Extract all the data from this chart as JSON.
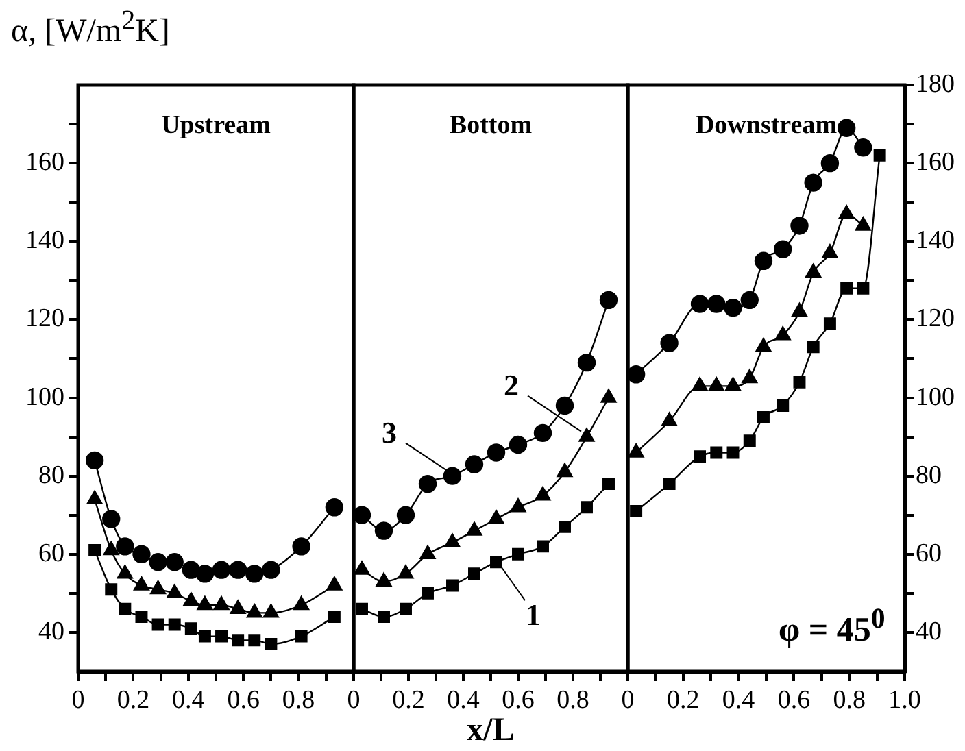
{
  "chart_data": [
    {
      "type": "line",
      "title": "Upstream",
      "ylabel": "α, [W/m$^{2}$K]",
      "line_style": "solid",
      "xlim": [
        0,
        1
      ],
      "xticks": [
        0,
        {
          "value": 0.1,
          "label": null
        },
        0.2,
        {
          "value": 0.3,
          "label": null
        },
        0.4,
        {
          "value": 0.5,
          "label": null
        },
        0.6,
        {
          "value": 0.7,
          "label": null
        },
        0.8,
        {
          "value": 0.9,
          "label": null
        },
        {
          "value": 1,
          "label": null
        }
      ],
      "ylim": [
        30,
        180
      ],
      "yticks": [
        40,
        {
          "value": 50,
          "label": null
        },
        60,
        {
          "value": 70,
          "label": null
        },
        80,
        {
          "value": 90,
          "label": null
        },
        100,
        {
          "value": 110,
          "label": null
        },
        120,
        {
          "value": 130,
          "label": null
        },
        140,
        {
          "value": 150,
          "label": null
        },
        160,
        {
          "value": 170,
          "label": null
        }
      ],
      "series": [
        {
          "color": "#000000",
          "marker": "square",
          "x": [
            0.06,
            0.12,
            0.17,
            0.23,
            0.29,
            0.35,
            0.41,
            0.46,
            0.52,
            0.58,
            0.64,
            0.7,
            0.81,
            0.93
          ],
          "values": [
            61,
            51,
            46,
            44,
            42,
            42,
            41,
            39,
            39,
            38,
            38,
            37,
            39,
            44
          ]
        },
        {
          "color": "#000000",
          "marker": "triangle",
          "x": [
            0.06,
            0.12,
            0.17,
            0.23,
            0.29,
            0.35,
            0.41,
            0.46,
            0.52,
            0.58,
            0.64,
            0.7,
            0.81,
            0.93
          ],
          "values": [
            74,
            61,
            55,
            52,
            51,
            50,
            48,
            47,
            47,
            46,
            45,
            45,
            47,
            52
          ]
        },
        {
          "color": "#000000",
          "marker": "circle",
          "x": [
            0.06,
            0.12,
            0.17,
            0.23,
            0.29,
            0.35,
            0.41,
            0.46,
            0.52,
            0.58,
            0.64,
            0.7,
            0.81,
            0.93
          ],
          "values": [
            84,
            69,
            62,
            60,
            58,
            58,
            56,
            55,
            56,
            56,
            55,
            56,
            62,
            72
          ]
        }
      ]
    },
    {
      "type": "line",
      "title": "Bottom",
      "xlabel": "x/L",
      "line_style": "solid",
      "tick_labels": "x",
      "xlim": [
        0,
        1
      ],
      "xticks": [
        0,
        {
          "value": 0.1,
          "label": null
        },
        0.2,
        {
          "value": 0.3,
          "label": null
        },
        0.4,
        {
          "value": 0.5,
          "label": null
        },
        0.6,
        {
          "value": 0.7,
          "label": null
        },
        0.8,
        {
          "value": 0.9,
          "label": null
        },
        {
          "value": 1,
          "label": null
        }
      ],
      "ylim": [
        30,
        180
      ],
      "series": [
        {
          "name": "1",
          "color": "#000000",
          "marker": "square",
          "x": [
            0.03,
            0.11,
            0.19,
            0.27,
            0.36,
            0.44,
            0.52,
            0.6,
            0.69,
            0.77,
            0.85,
            0.93
          ],
          "values": [
            46,
            44,
            46,
            50,
            52,
            55,
            58,
            60,
            62,
            67,
            72,
            78
          ]
        },
        {
          "name": "2",
          "color": "#000000",
          "marker": "triangle",
          "x": [
            0.03,
            0.11,
            0.19,
            0.27,
            0.36,
            0.44,
            0.52,
            0.6,
            0.69,
            0.77,
            0.85,
            0.93
          ],
          "values": [
            56,
            53,
            55,
            60,
            63,
            66,
            69,
            72,
            75,
            81,
            90,
            100
          ]
        },
        {
          "name": "3",
          "color": "#000000",
          "marker": "circle",
          "x": [
            0.03,
            0.11,
            0.19,
            0.27,
            0.36,
            0.44,
            0.52,
            0.6,
            0.69,
            0.77,
            0.85,
            0.93
          ],
          "values": [
            70,
            66,
            70,
            78,
            80,
            83,
            86,
            88,
            91,
            98,
            109,
            125
          ]
        }
      ]
    },
    {
      "type": "line",
      "title": "Downstream",
      "line_style": "solid",
      "annotations": [
        "φ = 45$^{0}$"
      ],
      "xlim": [
        0,
        1
      ],
      "xticks": [
        0,
        {
          "value": 0.1,
          "label": null
        },
        0.2,
        {
          "value": 0.3,
          "label": null
        },
        0.4,
        {
          "value": 0.5,
          "label": null
        },
        0.6,
        {
          "value": 0.7,
          "label": null
        },
        0.8,
        {
          "value": 0.9,
          "label": null
        },
        {
          "value": 1,
          "label": "1.0"
        }
      ],
      "y2lim": [
        30,
        180
      ],
      "y2ticks": [
        40,
        {
          "value": 50,
          "label": null
        },
        60,
        {
          "value": 70,
          "label": null
        },
        80,
        {
          "value": 90,
          "label": null
        },
        100,
        {
          "value": 110,
          "label": null
        },
        120,
        {
          "value": 130,
          "label": null
        },
        140,
        {
          "value": 150,
          "label": null
        },
        160,
        {
          "value": 170,
          "label": null
        },
        180
      ],
      "series": [
        {
          "axis": "y2",
          "color": "#000000",
          "marker": "square",
          "x": [
            0.03,
            0.15,
            0.26,
            0.32,
            0.38,
            0.44,
            0.49,
            0.56,
            0.62,
            0.67,
            0.73,
            0.79,
            0.85,
            0.91
          ],
          "values": [
            71,
            78,
            85,
            86,
            86,
            89,
            95,
            98,
            104,
            113,
            119,
            128,
            128,
            162
          ]
        },
        {
          "axis": "y2",
          "color": "#000000",
          "marker": "triangle",
          "x": [
            0.03,
            0.15,
            0.26,
            0.32,
            0.38,
            0.44,
            0.49,
            0.56,
            0.62,
            0.67,
            0.73,
            0.79,
            0.85
          ],
          "values": [
            86,
            94,
            103,
            103,
            103,
            105,
            113,
            116,
            122,
            132,
            137,
            147,
            144
          ]
        },
        {
          "axis": "y2",
          "color": "#000000",
          "marker": "circle",
          "x": [
            0.03,
            0.15,
            0.26,
            0.32,
            0.38,
            0.44,
            0.49,
            0.56,
            0.62,
            0.67,
            0.73,
            0.79,
            0.85
          ],
          "values": [
            106,
            114,
            124,
            124,
            123,
            125,
            135,
            138,
            144,
            155,
            160,
            169,
            164
          ]
        }
      ]
    }
  ]
}
